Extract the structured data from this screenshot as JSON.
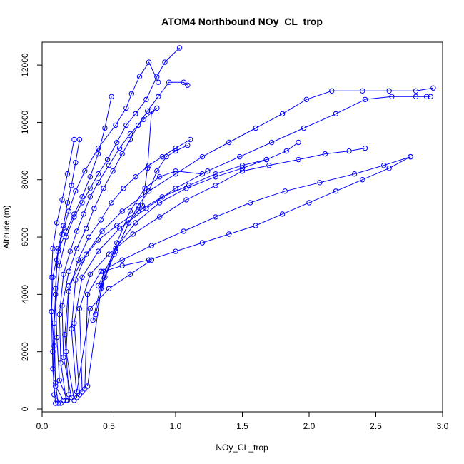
{
  "chart_data": {
    "type": "line",
    "title": "ATOM4 Northbound NOy_CL_trop",
    "xlabel": "NOy_CL_trop",
    "ylabel": "Altitude (m)",
    "xlim": [
      0,
      3.0
    ],
    "ylim": [
      -100,
      12800
    ],
    "xticks": [
      0.0,
      0.5,
      1.0,
      1.5,
      2.0,
      2.5,
      3.0
    ],
    "xtick_labels": [
      "0.0",
      "0.5",
      "1.0",
      "1.5",
      "2.0",
      "2.5",
      "3.0"
    ],
    "yticks": [
      0,
      2000,
      4000,
      6000,
      8000,
      10000,
      12000
    ],
    "ytick_labels": [
      "0",
      "2000",
      "4000",
      "6000",
      "8000",
      "10000",
      "12000"
    ],
    "grid": false,
    "line_color": "#0000ff",
    "marker": "open-circle",
    "series": [
      {
        "x": [
          0.14,
          0.09,
          0.08,
          0.1,
          0.11,
          0.15,
          0.2,
          0.25,
          0.32,
          0.42,
          0.55,
          0.63,
          0.67,
          0.73,
          0.8,
          0.87
        ],
        "y": [
          200,
          500,
          2000,
          4000,
          5200,
          6100,
          6900,
          7600,
          8300,
          9100,
          9900,
          10500,
          11000,
          11600,
          12100,
          11400
        ]
      },
      {
        "x": [
          0.16,
          0.1,
          0.09,
          0.13,
          0.18,
          0.24,
          0.3,
          0.36,
          0.42,
          0.49,
          0.56,
          0.63,
          0.7,
          0.78,
          0.86,
          0.92,
          1.03
        ],
        "y": [
          300,
          800,
          3000,
          5000,
          6000,
          6700,
          7200,
          7700,
          8200,
          8700,
          9300,
          9900,
          10300,
          10800,
          11600,
          12100,
          12600
        ]
      },
      {
        "x": [
          0.1,
          0.08,
          0.07,
          0.08,
          0.12,
          0.18,
          0.24,
          0.3,
          0.36,
          0.42,
          0.47,
          0.52
        ],
        "y": [
          200,
          1400,
          3400,
          4600,
          5500,
          6200,
          6800,
          7400,
          8100,
          8900,
          9800,
          10900
        ]
      },
      {
        "x": [
          0.19,
          0.13,
          0.11,
          0.1,
          0.12,
          0.16,
          0.19,
          0.22,
          0.25,
          0.28
        ],
        "y": [
          300,
          1000,
          2500,
          4200,
          5600,
          6400,
          7200,
          7800,
          8600,
          9400
        ]
      },
      {
        "x": [
          0.12,
          0.1,
          0.09,
          0.07,
          0.07,
          0.08,
          0.11,
          0.15,
          0.19,
          0.24
        ],
        "y": [
          200,
          900,
          2200,
          3400,
          4600,
          5600,
          6500,
          7300,
          8200,
          9400
        ]
      },
      {
        "x": [
          0.18,
          0.14,
          0.13,
          0.16,
          0.21,
          0.26,
          0.31,
          0.36,
          0.42,
          0.5,
          0.58,
          0.66,
          0.76,
          0.86
        ],
        "y": [
          300,
          1600,
          3300,
          4700,
          5500,
          6200,
          6800,
          7400,
          7900,
          8500,
          9100,
          9600,
          10100,
          10500
        ]
      },
      {
        "x": [
          0.22,
          0.16,
          0.15,
          0.2,
          0.26,
          0.33,
          0.39,
          0.46,
          0.53,
          0.6,
          0.66,
          0.72,
          0.79,
          0.87,
          0.95,
          1.06,
          1.09
        ],
        "y": [
          400,
          1800,
          3600,
          4800,
          5600,
          6300,
          7000,
          7700,
          8300,
          8900,
          9400,
          9900,
          10400,
          10900,
          11400,
          11400,
          11300
        ]
      },
      {
        "x": [
          0.24,
          0.18,
          0.2,
          0.27,
          0.35,
          0.44,
          0.52,
          0.61,
          0.7,
          0.8,
          0.9,
          1.0,
          1.11
        ],
        "y": [
          300,
          2000,
          4100,
          5200,
          6000,
          6600,
          7200,
          7700,
          8100,
          8500,
          8800,
          9100,
          9400
        ]
      },
      {
        "x": [
          0.2,
          0.17,
          0.2,
          0.3,
          0.42,
          0.56,
          0.72,
          0.9,
          1.1,
          1.3,
          1.5,
          1.68,
          1.83,
          1.92
        ],
        "y": [
          500,
          2600,
          4300,
          5200,
          5900,
          6400,
          6900,
          7400,
          7800,
          8200,
          8500,
          8700,
          9000,
          9300
        ]
      },
      {
        "x": [
          0.26,
          0.22,
          0.25,
          0.33,
          0.45,
          0.6,
          0.8,
          1.0,
          1.2,
          1.4,
          1.6,
          1.8,
          1.98,
          2.17,
          2.4,
          2.6,
          2.8,
          2.93
        ],
        "y": [
          400,
          2800,
          4500,
          5400,
          6200,
          6900,
          7600,
          8200,
          8800,
          9300,
          9800,
          10300,
          10800,
          11100,
          11100,
          11100,
          11100,
          11200
        ]
      },
      {
        "x": [
          0.28,
          0.24,
          0.3,
          0.42,
          0.58,
          0.78,
          1.0,
          1.24,
          1.48,
          1.72,
          1.96,
          2.2,
          2.42,
          2.62,
          2.8,
          2.88,
          2.91
        ],
        "y": [
          500,
          3000,
          4600,
          5500,
          6300,
          7000,
          7700,
          8300,
          8800,
          9300,
          9800,
          10300,
          10800,
          10900,
          10900,
          10900,
          10900
        ]
      },
      {
        "x": [
          0.3,
          0.28,
          0.36,
          0.5,
          0.68,
          0.88,
          1.08,
          1.3,
          1.5,
          1.7,
          1.92,
          2.12,
          2.3,
          2.42
        ],
        "y": [
          600,
          3500,
          4700,
          5400,
          6100,
          6700,
          7300,
          7800,
          8300,
          8500,
          8700,
          8900,
          9000,
          9100
        ]
      },
      {
        "x": [
          0.32,
          0.34,
          0.44,
          0.6,
          0.82,
          1.06,
          1.3,
          1.56,
          1.82,
          2.08,
          2.34,
          2.56,
          2.76
        ],
        "y": [
          700,
          4000,
          4800,
          5200,
          5700,
          6200,
          6700,
          7200,
          7600,
          7900,
          8200,
          8500,
          8800
        ]
      },
      {
        "x": [
          0.34,
          0.46,
          0.6,
          0.8,
          1.0,
          1.2,
          1.4,
          1.6,
          1.8,
          2.0,
          2.2,
          2.4,
          2.6,
          2.76
        ],
        "y": [
          800,
          4800,
          5000,
          5200,
          5500,
          5800,
          6100,
          6400,
          6800,
          7200,
          7600,
          8000,
          8400,
          8800
        ]
      },
      {
        "x": [
          0.26,
          0.36,
          0.5,
          0.66,
          0.82
        ],
        "y": [
          600,
          3500,
          4200,
          4700,
          5200
        ]
      },
      {
        "x": [
          0.38,
          0.44,
          0.55,
          0.65,
          0.72,
          0.8,
          0.86,
          0.93,
          1.0,
          1.09
        ],
        "y": [
          3100,
          4300,
          5500,
          6500,
          7100,
          7600,
          8300,
          8800,
          9000,
          9200
        ]
      },
      {
        "x": [
          0.4,
          0.47,
          0.56,
          0.66,
          0.77,
          0.88,
          1.0,
          1.2
        ],
        "y": [
          3300,
          4600,
          5800,
          6900,
          7700,
          8100,
          8300,
          8200
        ]
      },
      {
        "x": [
          0.42,
          0.55,
          0.7,
          0.88,
          1.08,
          1.3,
          1.5,
          1.68
        ],
        "y": [
          4300,
          5600,
          6500,
          7200,
          7700,
          8100,
          8400,
          8700
        ]
      },
      {
        "x": [
          0.44,
          0.54,
          0.65,
          0.75,
          0.79,
          0.82
        ],
        "y": [
          4200,
          5400,
          6500,
          7100,
          8400,
          10400
        ]
      }
    ]
  }
}
